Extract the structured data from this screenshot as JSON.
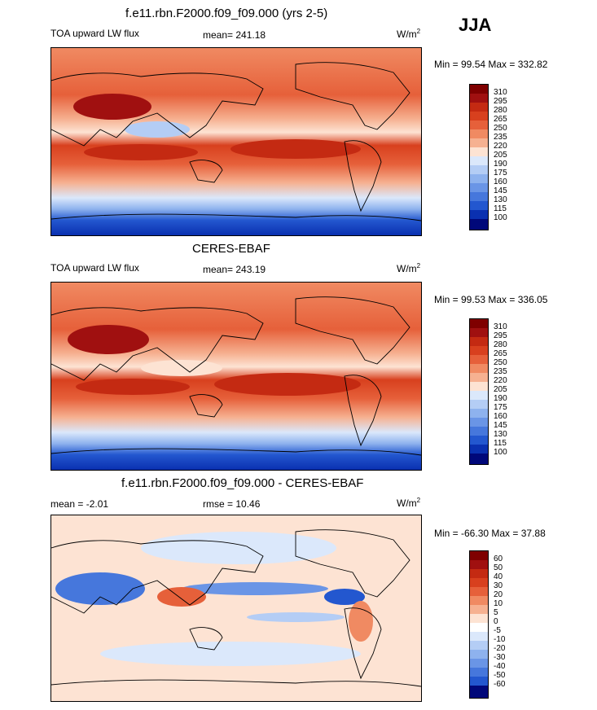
{
  "season": "JJA",
  "panels": [
    {
      "title": "f.e11.rbn.F2000.f09_f09.000 (yrs 2-5)",
      "left_label": "TOA upward LW flux",
      "center_label": "mean= 241.18",
      "units_base": "W/m",
      "units_sup": "2",
      "minmax": "Min =  99.54 Max = 332.82"
    },
    {
      "title": "CERES-EBAF",
      "left_label": "TOA upward LW flux",
      "center_label": "mean= 243.19",
      "units_base": "W/m",
      "units_sup": "2",
      "minmax": "Min =  99.53 Max = 336.05"
    },
    {
      "title": "f.e11.rbn.F2000.f09_f09.000 - CERES-EBAF",
      "left_label": "mean =  -2.01",
      "center_label": "rmse =  10.46",
      "units_base": "W/m",
      "units_sup": "2",
      "minmax": "Min = -66.30 Max =  37.88"
    }
  ],
  "chart_data": [
    {
      "type": "heatmap",
      "title": "f.e11.rbn.F2000.f09_f09.000 (yrs 2-5)",
      "variable": "TOA upward LW flux",
      "mean": 241.18,
      "min": 99.54,
      "max": 332.82,
      "colorbar_levels": [
        310,
        295,
        280,
        265,
        250,
        235,
        220,
        205,
        190,
        175,
        160,
        145,
        130,
        115,
        100
      ],
      "colorbar_colors": [
        "#7f0000",
        "#a01010",
        "#c42a12",
        "#d8401e",
        "#e6603a",
        "#f08a62",
        "#f6b191",
        "#fde3d3",
        "#dbe8fb",
        "#b4cdf5",
        "#8eb2ee",
        "#6a95e6",
        "#4677dc",
        "#2357cf",
        "#0a30b0",
        "#00087a"
      ]
    },
    {
      "type": "heatmap",
      "title": "CERES-EBAF",
      "variable": "TOA upward LW flux",
      "mean": 243.19,
      "min": 99.53,
      "max": 336.05,
      "colorbar_levels": [
        310,
        295,
        280,
        265,
        250,
        235,
        220,
        205,
        190,
        175,
        160,
        145,
        130,
        115,
        100
      ],
      "colorbar_colors": [
        "#7f0000",
        "#a01010",
        "#c42a12",
        "#d8401e",
        "#e6603a",
        "#f08a62",
        "#f6b191",
        "#fde3d3",
        "#dbe8fb",
        "#b4cdf5",
        "#8eb2ee",
        "#6a95e6",
        "#4677dc",
        "#2357cf",
        "#0a30b0",
        "#00087a"
      ]
    },
    {
      "type": "heatmap",
      "title": "f.e11.rbn.F2000.f09_f09.000 - CERES-EBAF",
      "mean": -2.01,
      "rmse": 10.46,
      "min": -66.3,
      "max": 37.88,
      "colorbar_levels": [
        60,
        50,
        40,
        30,
        20,
        10,
        5,
        0,
        -5,
        -10,
        -20,
        -30,
        -40,
        -50,
        -60
      ],
      "colorbar_colors": [
        "#7f0000",
        "#a01010",
        "#c42a12",
        "#d8401e",
        "#e6603a",
        "#f08a62",
        "#f6b191",
        "#fde3d3",
        "#ffffff",
        "#dbe8fb",
        "#b4cdf5",
        "#8eb2ee",
        "#6a95e6",
        "#4677dc",
        "#2357cf",
        "#00087a"
      ]
    }
  ]
}
